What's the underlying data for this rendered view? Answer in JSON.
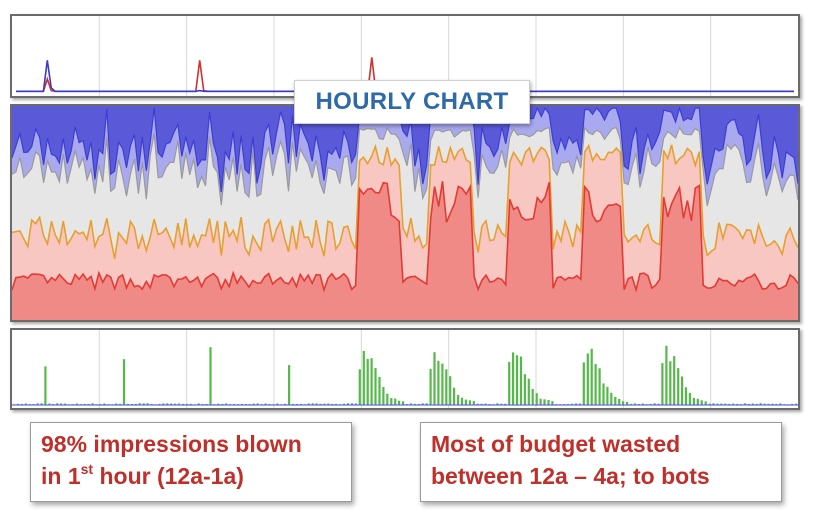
{
  "chart_data": [
    {
      "type": "line",
      "description_role": "hourly trend overview",
      "x": [
        1,
        2,
        3,
        4,
        5,
        6,
        7,
        8,
        9,
        10,
        11,
        12,
        13,
        14,
        15,
        16,
        17,
        18,
        19,
        20,
        21,
        22,
        23,
        24,
        25,
        26,
        27,
        28,
        29,
        30,
        31,
        32,
        33,
        34,
        35,
        36,
        37,
        38,
        39,
        40,
        41,
        42,
        43,
        44,
        45,
        46,
        47,
        48,
        49,
        50,
        51,
        52,
        53,
        54,
        55,
        56,
        57,
        58,
        59,
        60,
        61,
        62,
        63,
        64,
        65,
        66,
        67,
        68,
        69,
        70,
        71,
        72,
        73,
        74,
        75,
        76,
        77,
        78,
        79,
        80,
        81,
        82,
        83,
        84,
        85,
        86,
        87,
        88,
        89,
        90,
        91,
        92,
        93,
        94,
        95,
        96,
        97,
        98,
        99,
        100,
        101,
        102,
        103,
        104,
        105,
        106,
        107,
        108,
        109,
        110,
        111,
        112,
        113,
        114,
        115,
        116,
        117,
        118,
        119,
        120,
        121,
        122,
        123,
        124,
        125,
        126,
        127,
        128,
        129,
        130,
        131,
        132,
        133,
        134,
        135,
        136,
        137,
        138,
        139,
        140,
        141,
        142,
        143,
        144,
        145,
        146,
        147,
        148,
        149,
        150,
        151,
        152,
        153,
        154,
        155,
        156,
        157,
        158,
        159,
        160,
        161,
        162,
        163,
        164,
        165,
        166,
        167,
        168,
        169,
        170,
        171,
        172,
        173,
        174,
        175,
        176,
        177,
        178,
        179,
        180,
        181,
        182,
        183,
        184,
        185,
        186,
        187,
        188,
        189,
        190,
        191,
        192,
        193,
        194,
        195,
        196,
        197,
        198,
        199,
        200
      ],
      "series": [
        {
          "color": "#d0312d",
          "values": [
            1,
            1,
            1,
            1,
            1,
            1,
            1,
            1,
            18,
            2,
            1,
            1,
            1,
            1,
            1,
            1,
            1,
            1,
            1,
            1,
            1,
            1,
            1,
            1,
            1,
            1,
            1,
            1,
            1,
            1,
            1,
            1,
            1,
            1,
            1,
            1,
            1,
            1,
            1,
            1,
            1,
            1,
            1,
            1,
            1,
            1,
            1,
            44,
            2,
            1,
            1,
            1,
            1,
            1,
            1,
            1,
            1,
            1,
            1,
            1,
            1,
            1,
            1,
            1,
            1,
            1,
            1,
            1,
            1,
            1,
            1,
            1,
            1,
            1,
            1,
            1,
            1,
            1,
            1,
            1,
            1,
            1,
            1,
            1,
            1,
            1,
            1,
            1,
            1,
            1,
            1,
            48,
            2,
            1,
            1,
            1,
            1,
            1,
            1,
            1,
            1,
            1,
            1,
            1,
            1,
            1,
            1,
            1,
            1,
            1,
            1,
            1,
            1,
            1,
            1,
            1,
            1,
            1,
            1,
            1,
            1,
            1,
            1,
            1,
            1,
            1,
            1,
            1,
            1,
            1,
            1,
            1,
            1,
            1,
            1,
            1,
            1,
            1,
            1,
            1,
            1,
            1,
            1,
            1,
            1,
            1,
            1,
            1,
            1,
            1,
            1,
            1,
            1,
            1,
            1,
            1,
            1,
            1,
            1,
            1,
            1,
            1,
            1,
            1,
            1,
            1,
            1,
            1,
            1,
            1,
            1,
            1,
            1,
            1,
            1,
            1,
            1,
            1,
            1,
            1,
            1,
            1,
            1,
            1,
            1,
            1,
            1,
            1,
            1,
            1,
            1,
            1,
            1,
            1,
            1,
            1,
            1,
            1,
            1,
            1
          ]
        },
        {
          "color": "#3a3ad0",
          "values": [
            1,
            1,
            1,
            1,
            1,
            1,
            1,
            1,
            44,
            6,
            1,
            1,
            1,
            1,
            1,
            1,
            1,
            1,
            1,
            1,
            1,
            1,
            1,
            1,
            1,
            1,
            1,
            1,
            1,
            1,
            1,
            1,
            1,
            1,
            1,
            1,
            1,
            1,
            1,
            1,
            1,
            1,
            1,
            1,
            1,
            1,
            1,
            2,
            1,
            1,
            1,
            1,
            1,
            1,
            1,
            1,
            1,
            1,
            1,
            1,
            1,
            1,
            1,
            1,
            1,
            1,
            1,
            1,
            1,
            1,
            1,
            1,
            1,
            1,
            1,
            1,
            1,
            1,
            1,
            1,
            1,
            1,
            1,
            1,
            1,
            1,
            1,
            1,
            1,
            1,
            1,
            3,
            1,
            1,
            1,
            1,
            1,
            1,
            1,
            1,
            1,
            1,
            1,
            1,
            1,
            1,
            1,
            1,
            1,
            1,
            1,
            1,
            1,
            1,
            1,
            1,
            1,
            1,
            1,
            1,
            1,
            1,
            1,
            1,
            1,
            1,
            1,
            1,
            1,
            1,
            1,
            1,
            1,
            1,
            1,
            1,
            1,
            1,
            1,
            1,
            1,
            1,
            1,
            1,
            1,
            1,
            1,
            1,
            1,
            1,
            1,
            1,
            1,
            1,
            1,
            1,
            1,
            1,
            1,
            1,
            1,
            1,
            1,
            1,
            1,
            1,
            1,
            1,
            1,
            1,
            1,
            1,
            1,
            1,
            1,
            1,
            1,
            1,
            1,
            1,
            1,
            1,
            1,
            1,
            1,
            1,
            1,
            1,
            1,
            1,
            1,
            1,
            1,
            1,
            1,
            1,
            1,
            1,
            1,
            1
          ]
        }
      ],
      "ylim": [
        0,
        100
      ]
    },
    {
      "type": "area",
      "description_role": "stacked hourly distribution",
      "ylim": [
        0,
        100
      ],
      "bands": [
        {
          "color": "#e23b35",
          "fill": "#f08a86"
        },
        {
          "color": "#e6a030",
          "fill": "#f8c7c2"
        },
        {
          "color": "#9a9a9a",
          "fill": "#e6e6e6"
        },
        {
          "color": "#3d3dd6",
          "fill": "#a9a9f0"
        }
      ]
    },
    {
      "type": "bar",
      "description_role": "hourly impressions bars",
      "ylim": [
        0,
        100
      ],
      "bar_color": "#55b94a",
      "spike_bars": [
        8,
        28,
        50,
        70
      ],
      "burst_starts": [
        88,
        106,
        126,
        145,
        165
      ]
    }
  ],
  "title": "HOURLY CHART",
  "notes": {
    "left": {
      "line1": "98% impressions blown",
      "line2_prefix": "in 1",
      "line2_sup": "st",
      "line2_suffix": " hour (12a-1a)"
    },
    "right": {
      "line1": "Most of budget wasted",
      "line2": "between 12a – 4a; to bots"
    }
  }
}
